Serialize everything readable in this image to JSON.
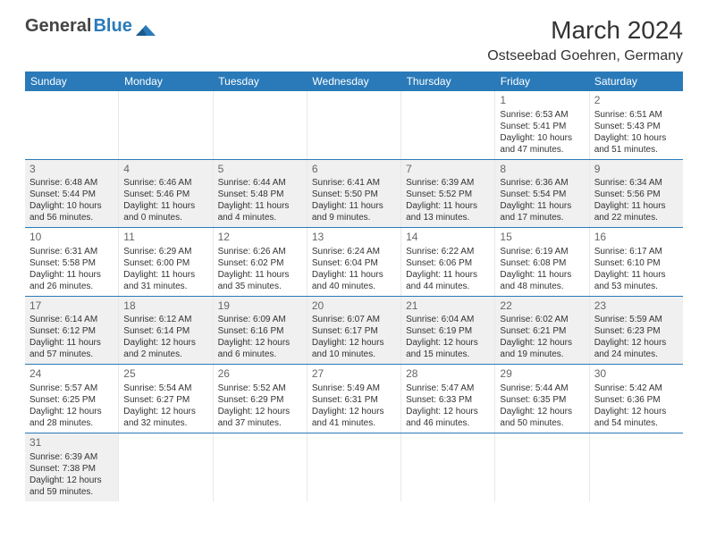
{
  "logo": {
    "text1": "General",
    "text2": "Blue"
  },
  "title": "March 2024",
  "location": "Ostseebad Goehren, Germany",
  "colors": {
    "header_bg": "#2a7ab9",
    "gray_cell": "#f0f0f0",
    "row_border": "#2a7ab9",
    "text": "#333333"
  },
  "weekdays": [
    "Sunday",
    "Monday",
    "Tuesday",
    "Wednesday",
    "Thursday",
    "Friday",
    "Saturday"
  ],
  "weeks": [
    [
      {
        "empty": true
      },
      {
        "empty": true
      },
      {
        "empty": true
      },
      {
        "empty": true
      },
      {
        "empty": true
      },
      {
        "day": "1",
        "sunrise": "Sunrise: 6:53 AM",
        "sunset": "Sunset: 5:41 PM",
        "daylight": "Daylight: 10 hours and 47 minutes."
      },
      {
        "day": "2",
        "sunrise": "Sunrise: 6:51 AM",
        "sunset": "Sunset: 5:43 PM",
        "daylight": "Daylight: 10 hours and 51 minutes."
      }
    ],
    [
      {
        "day": "3",
        "gray": true,
        "sunrise": "Sunrise: 6:48 AM",
        "sunset": "Sunset: 5:44 PM",
        "daylight": "Daylight: 10 hours and 56 minutes."
      },
      {
        "day": "4",
        "gray": true,
        "sunrise": "Sunrise: 6:46 AM",
        "sunset": "Sunset: 5:46 PM",
        "daylight": "Daylight: 11 hours and 0 minutes."
      },
      {
        "day": "5",
        "gray": true,
        "sunrise": "Sunrise: 6:44 AM",
        "sunset": "Sunset: 5:48 PM",
        "daylight": "Daylight: 11 hours and 4 minutes."
      },
      {
        "day": "6",
        "gray": true,
        "sunrise": "Sunrise: 6:41 AM",
        "sunset": "Sunset: 5:50 PM",
        "daylight": "Daylight: 11 hours and 9 minutes."
      },
      {
        "day": "7",
        "gray": true,
        "sunrise": "Sunrise: 6:39 AM",
        "sunset": "Sunset: 5:52 PM",
        "daylight": "Daylight: 11 hours and 13 minutes."
      },
      {
        "day": "8",
        "gray": true,
        "sunrise": "Sunrise: 6:36 AM",
        "sunset": "Sunset: 5:54 PM",
        "daylight": "Daylight: 11 hours and 17 minutes."
      },
      {
        "day": "9",
        "gray": true,
        "sunrise": "Sunrise: 6:34 AM",
        "sunset": "Sunset: 5:56 PM",
        "daylight": "Daylight: 11 hours and 22 minutes."
      }
    ],
    [
      {
        "day": "10",
        "sunrise": "Sunrise: 6:31 AM",
        "sunset": "Sunset: 5:58 PM",
        "daylight": "Daylight: 11 hours and 26 minutes."
      },
      {
        "day": "11",
        "sunrise": "Sunrise: 6:29 AM",
        "sunset": "Sunset: 6:00 PM",
        "daylight": "Daylight: 11 hours and 31 minutes."
      },
      {
        "day": "12",
        "sunrise": "Sunrise: 6:26 AM",
        "sunset": "Sunset: 6:02 PM",
        "daylight": "Daylight: 11 hours and 35 minutes."
      },
      {
        "day": "13",
        "sunrise": "Sunrise: 6:24 AM",
        "sunset": "Sunset: 6:04 PM",
        "daylight": "Daylight: 11 hours and 40 minutes."
      },
      {
        "day": "14",
        "sunrise": "Sunrise: 6:22 AM",
        "sunset": "Sunset: 6:06 PM",
        "daylight": "Daylight: 11 hours and 44 minutes."
      },
      {
        "day": "15",
        "sunrise": "Sunrise: 6:19 AM",
        "sunset": "Sunset: 6:08 PM",
        "daylight": "Daylight: 11 hours and 48 minutes."
      },
      {
        "day": "16",
        "sunrise": "Sunrise: 6:17 AM",
        "sunset": "Sunset: 6:10 PM",
        "daylight": "Daylight: 11 hours and 53 minutes."
      }
    ],
    [
      {
        "day": "17",
        "gray": true,
        "sunrise": "Sunrise: 6:14 AM",
        "sunset": "Sunset: 6:12 PM",
        "daylight": "Daylight: 11 hours and 57 minutes."
      },
      {
        "day": "18",
        "gray": true,
        "sunrise": "Sunrise: 6:12 AM",
        "sunset": "Sunset: 6:14 PM",
        "daylight": "Daylight: 12 hours and 2 minutes."
      },
      {
        "day": "19",
        "gray": true,
        "sunrise": "Sunrise: 6:09 AM",
        "sunset": "Sunset: 6:16 PM",
        "daylight": "Daylight: 12 hours and 6 minutes."
      },
      {
        "day": "20",
        "gray": true,
        "sunrise": "Sunrise: 6:07 AM",
        "sunset": "Sunset: 6:17 PM",
        "daylight": "Daylight: 12 hours and 10 minutes."
      },
      {
        "day": "21",
        "gray": true,
        "sunrise": "Sunrise: 6:04 AM",
        "sunset": "Sunset: 6:19 PM",
        "daylight": "Daylight: 12 hours and 15 minutes."
      },
      {
        "day": "22",
        "gray": true,
        "sunrise": "Sunrise: 6:02 AM",
        "sunset": "Sunset: 6:21 PM",
        "daylight": "Daylight: 12 hours and 19 minutes."
      },
      {
        "day": "23",
        "gray": true,
        "sunrise": "Sunrise: 5:59 AM",
        "sunset": "Sunset: 6:23 PM",
        "daylight": "Daylight: 12 hours and 24 minutes."
      }
    ],
    [
      {
        "day": "24",
        "sunrise": "Sunrise: 5:57 AM",
        "sunset": "Sunset: 6:25 PM",
        "daylight": "Daylight: 12 hours and 28 minutes."
      },
      {
        "day": "25",
        "sunrise": "Sunrise: 5:54 AM",
        "sunset": "Sunset: 6:27 PM",
        "daylight": "Daylight: 12 hours and 32 minutes."
      },
      {
        "day": "26",
        "sunrise": "Sunrise: 5:52 AM",
        "sunset": "Sunset: 6:29 PM",
        "daylight": "Daylight: 12 hours and 37 minutes."
      },
      {
        "day": "27",
        "sunrise": "Sunrise: 5:49 AM",
        "sunset": "Sunset: 6:31 PM",
        "daylight": "Daylight: 12 hours and 41 minutes."
      },
      {
        "day": "28",
        "sunrise": "Sunrise: 5:47 AM",
        "sunset": "Sunset: 6:33 PM",
        "daylight": "Daylight: 12 hours and 46 minutes."
      },
      {
        "day": "29",
        "sunrise": "Sunrise: 5:44 AM",
        "sunset": "Sunset: 6:35 PM",
        "daylight": "Daylight: 12 hours and 50 minutes."
      },
      {
        "day": "30",
        "sunrise": "Sunrise: 5:42 AM",
        "sunset": "Sunset: 6:36 PM",
        "daylight": "Daylight: 12 hours and 54 minutes."
      }
    ],
    [
      {
        "day": "31",
        "gray": true,
        "sunrise": "Sunrise: 6:39 AM",
        "sunset": "Sunset: 7:38 PM",
        "daylight": "Daylight: 12 hours and 59 minutes."
      },
      {
        "empty": true
      },
      {
        "empty": true
      },
      {
        "empty": true
      },
      {
        "empty": true
      },
      {
        "empty": true
      },
      {
        "empty": true
      }
    ]
  ]
}
